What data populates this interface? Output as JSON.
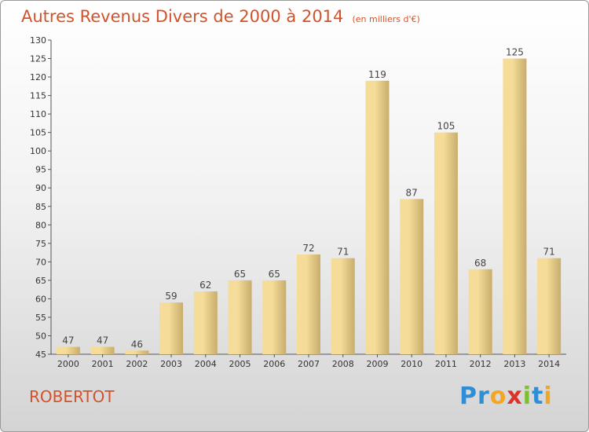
{
  "header": {
    "title": "Autres Revenus Divers de 2000 à 2014",
    "unit": "(en milliers d'€)"
  },
  "footer": {
    "commune": "ROBERTOT",
    "brand_letters": [
      {
        "char": "P",
        "color": "#2e8fd6"
      },
      {
        "char": "r",
        "color": "#2e8fd6"
      },
      {
        "char": "o",
        "color": "#f2a623"
      },
      {
        "char": "x",
        "color": "#d9332b"
      },
      {
        "char": "i",
        "color": "#7cbf2f"
      },
      {
        "char": "t",
        "color": "#2e8fd6"
      },
      {
        "char": "i",
        "color": "#f2a623"
      }
    ]
  },
  "colors": {
    "title": "#d4522a",
    "bar_light": "#f5dc98",
    "bar_dark": "#c8ad6c",
    "axis": "#555555"
  },
  "chart_data": {
    "type": "bar",
    "title": "Autres Revenus Divers de 2000 à 2014",
    "subtitle": "(en milliers d'€)",
    "xlabel": "",
    "ylabel": "",
    "categories": [
      "2000",
      "2001",
      "2002",
      "2003",
      "2004",
      "2005",
      "2006",
      "2007",
      "2008",
      "2009",
      "2010",
      "2011",
      "2012",
      "2013",
      "2014"
    ],
    "values": [
      47,
      47,
      46,
      59,
      62,
      65,
      65,
      72,
      71,
      119,
      87,
      105,
      68,
      125,
      71
    ],
    "ylim": [
      45,
      130
    ],
    "yticks": [
      45,
      50,
      55,
      60,
      65,
      70,
      75,
      80,
      85,
      90,
      95,
      100,
      105,
      110,
      115,
      120,
      125,
      130
    ],
    "grid": false,
    "legend": "none"
  }
}
